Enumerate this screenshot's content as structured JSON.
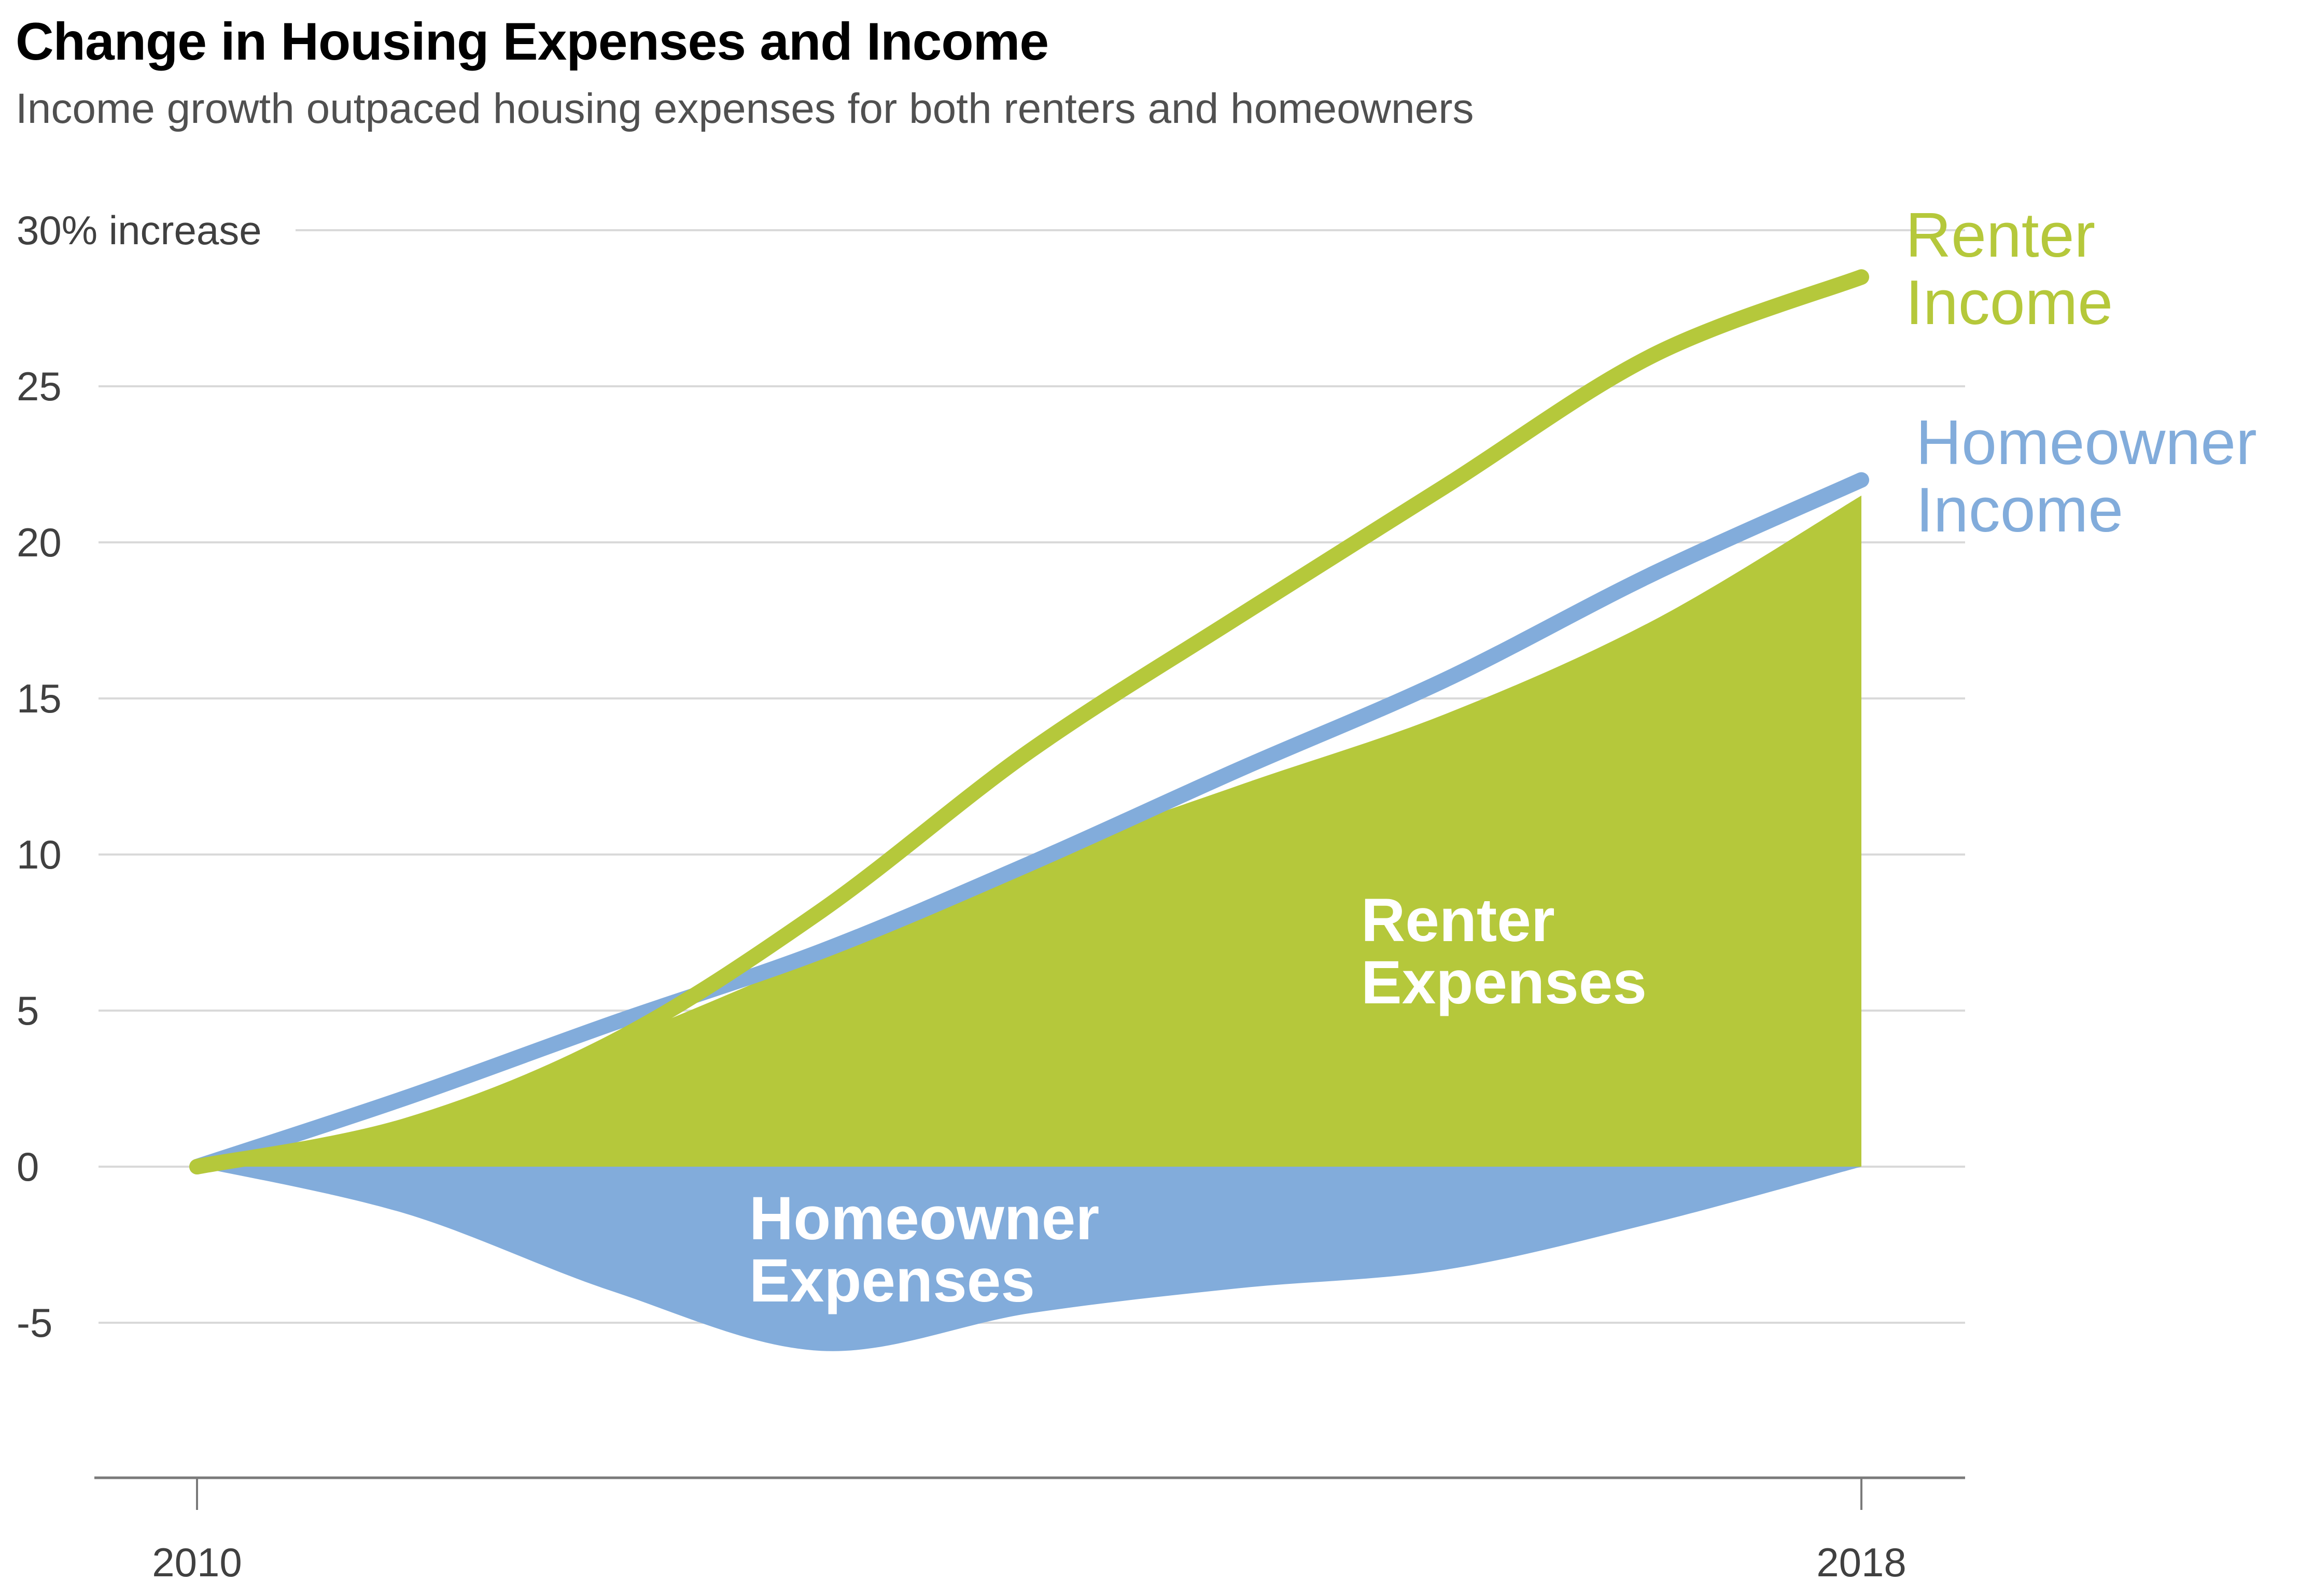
{
  "title": "Change in Housing Expenses and Income",
  "subtitle": "Income growth outpaced housing expenses for both renters and homeowners",
  "colors": {
    "renter": "#b5c83b",
    "homeowner": "#82acdb",
    "grid": "#d9d9d9",
    "axis": "#7a7a7a"
  },
  "chart_data": {
    "type": "area",
    "xlabel": "",
    "ylabel": "",
    "xlim": [
      2010,
      2018
    ],
    "ylim": [
      -10,
      30
    ],
    "grid": true,
    "y_ticks": [
      {
        "value": 30,
        "label": "30% increase"
      },
      {
        "value": 25,
        "label": "25"
      },
      {
        "value": 20,
        "label": "20"
      },
      {
        "value": 15,
        "label": "15"
      },
      {
        "value": 10,
        "label": "10"
      },
      {
        "value": 5,
        "label": "5"
      },
      {
        "value": 0,
        "label": "0"
      },
      {
        "value": -5,
        "label": "-5"
      }
    ],
    "x_ticks": [
      {
        "value": 2010,
        "label": "2010"
      },
      {
        "value": 2018,
        "label": "2018"
      }
    ],
    "x": [
      2010,
      2011,
      2012,
      2013,
      2014,
      2015,
      2016,
      2017,
      2018
    ],
    "series": [
      {
        "name": "Renter Expenses",
        "kind": "area",
        "color": "#b5c83b",
        "values": [
          0,
          1.5,
          4.0,
          6.8,
          9.8,
          12.2,
          14.5,
          17.5,
          21.5
        ]
      },
      {
        "name": "Homeowner Expenses",
        "kind": "area",
        "color": "#82acdb",
        "values": [
          0,
          -1.5,
          -4.0,
          -5.9,
          -4.7,
          -3.9,
          -3.3,
          -1.8,
          0
        ]
      },
      {
        "name": "Renter Income",
        "kind": "line",
        "color": "#b5c83b",
        "values": [
          0,
          1.3,
          4.0,
          8.2,
          13.3,
          17.6,
          21.8,
          26.0,
          28.5
        ]
      },
      {
        "name": "Homeowner Income",
        "kind": "line",
        "color": "#82acdb",
        "values": [
          0,
          2.2,
          4.6,
          6.9,
          9.7,
          12.7,
          15.6,
          19.0,
          22.0
        ]
      }
    ]
  },
  "labels": {
    "renter_income": [
      "Renter",
      "Income"
    ],
    "homeowner_income": [
      "Homeowner",
      "Income"
    ],
    "renter_expenses": [
      "Renter",
      "Expenses"
    ],
    "homeowner_expenses": [
      "Homeowner",
      "Expenses"
    ]
  }
}
